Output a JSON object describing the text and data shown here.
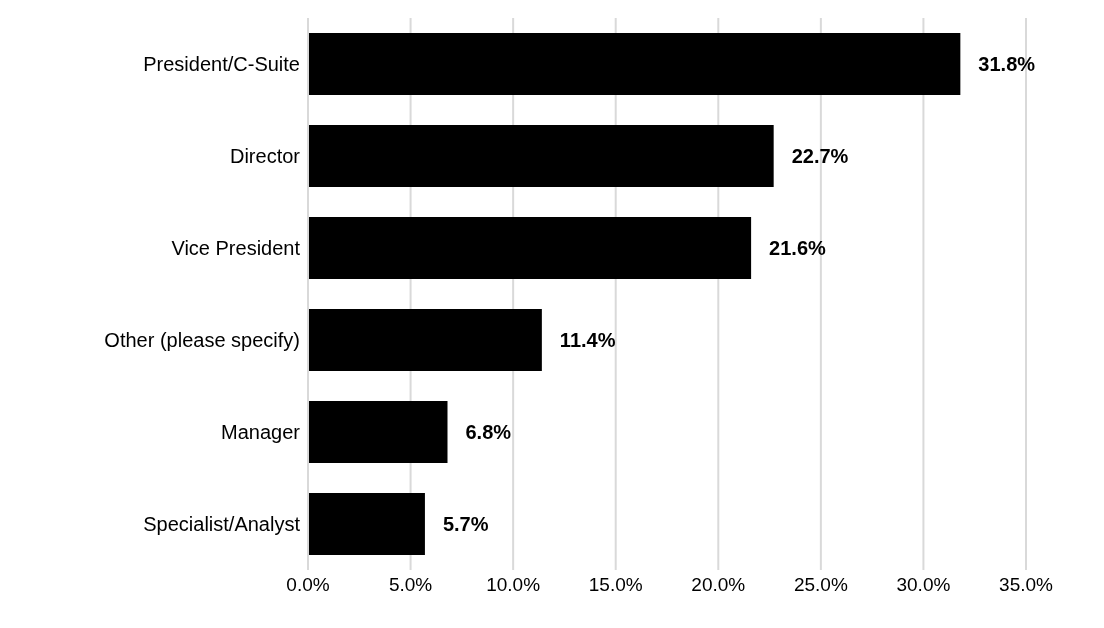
{
  "chart_data": {
    "type": "bar",
    "orientation": "horizontal",
    "categories": [
      "President/C-Suite",
      "Director",
      "Vice President",
      "Other (please specify)",
      "Manager",
      "Specialist/Analyst"
    ],
    "values": [
      31.8,
      22.7,
      21.6,
      11.4,
      6.8,
      5.7
    ],
    "value_labels": [
      "31.8%",
      "22.7%",
      "21.6%",
      "11.4%",
      "6.8%",
      "5.7%"
    ],
    "color": "#000000",
    "xlim": [
      0,
      35
    ],
    "xticks": [
      {
        "value": 0,
        "label": "0.0%"
      },
      {
        "value": 5,
        "label": "5.0%"
      },
      {
        "value": 10,
        "label": "10.0%"
      },
      {
        "value": 15,
        "label": "15.0%"
      },
      {
        "value": 20,
        "label": "20.0%"
      },
      {
        "value": 25,
        "label": "25.0%"
      },
      {
        "value": 30,
        "label": "30.0%"
      },
      {
        "value": 35,
        "label": "35.0%"
      }
    ],
    "grid": "x"
  }
}
